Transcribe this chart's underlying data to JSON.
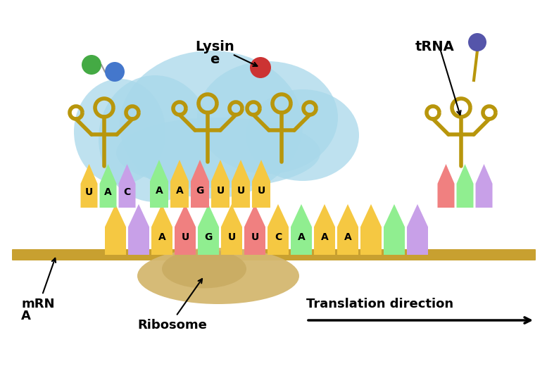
{
  "bg_color": "#ffffff",
  "sky_blue": "#a8d8ea",
  "strand_color": "#b8960c",
  "strand_lw": 4.0,
  "ribosome_top_color": "#a8d8ea",
  "ribosome_bot_color": "#d4b870",
  "mrna_bar_color": "#c8a030",
  "green_ball": "#44aa44",
  "blue_ball": "#4477cc",
  "red_ball": "#cc3333",
  "purple_ball": "#5555aa",
  "mRNA_sequence": [
    "A",
    "U",
    "G",
    "U",
    "U",
    "C",
    "A",
    "A",
    "A"
  ],
  "mRNA_colors": [
    "#f5c842",
    "#f08080",
    "#90ee90",
    "#f5c842",
    "#f08080",
    "#f5c842",
    "#90ee90",
    "#f5c842",
    "#f5c842"
  ],
  "left_fence_colors": [
    "#f5c842",
    "#c8a0e8"
  ],
  "right_fence_colors": [
    "#f5c842",
    "#90ee90",
    "#c8a0e8"
  ],
  "tRNA1_bases": [
    "U",
    "A",
    "C"
  ],
  "tRNA1_colors": [
    "#f5c842",
    "#90ee90",
    "#c8a0e8"
  ],
  "tRNA2_bases": [
    "A",
    "A",
    "G",
    "U",
    "U",
    "U"
  ],
  "tRNA2_colors": [
    "#90ee90",
    "#f5c842",
    "#f08080",
    "#f5c842",
    "#f5c842",
    "#f5c842"
  ],
  "tRNA3_colors": [
    "#f08080",
    "#90ee90",
    "#c8a0e8"
  ]
}
